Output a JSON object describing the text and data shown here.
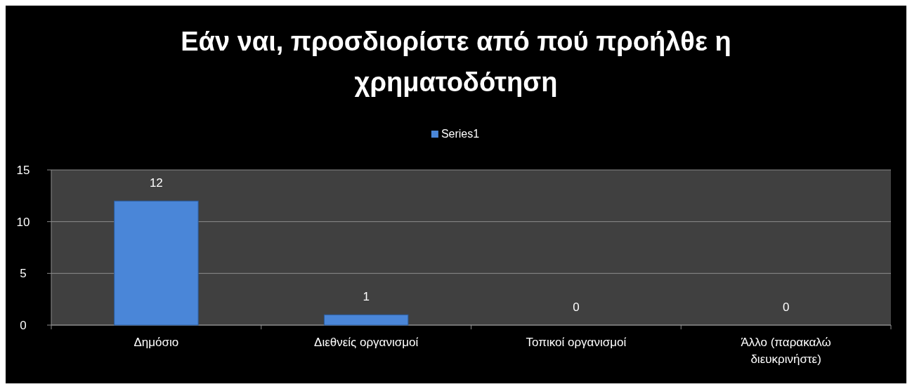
{
  "chart_data": {
    "type": "bar",
    "title": "Εάν ναι, προσδιορίστε από πού προήλθε η χρηματοδότηση",
    "categories": [
      "Δημόσιο",
      "Διεθνείς οργανισμοί",
      "Τοπικοί οργανισμοί",
      "Άλλο (παρακαλώ διευκρινήστε)"
    ],
    "series": [
      {
        "name": "Series1",
        "color": "#4a86d8",
        "values": [
          12,
          1,
          0,
          0
        ]
      }
    ],
    "ylim": [
      0,
      15
    ],
    "yticks": [
      0,
      5,
      10,
      15
    ],
    "grid": "y",
    "legend": "top",
    "data_labels": true
  }
}
